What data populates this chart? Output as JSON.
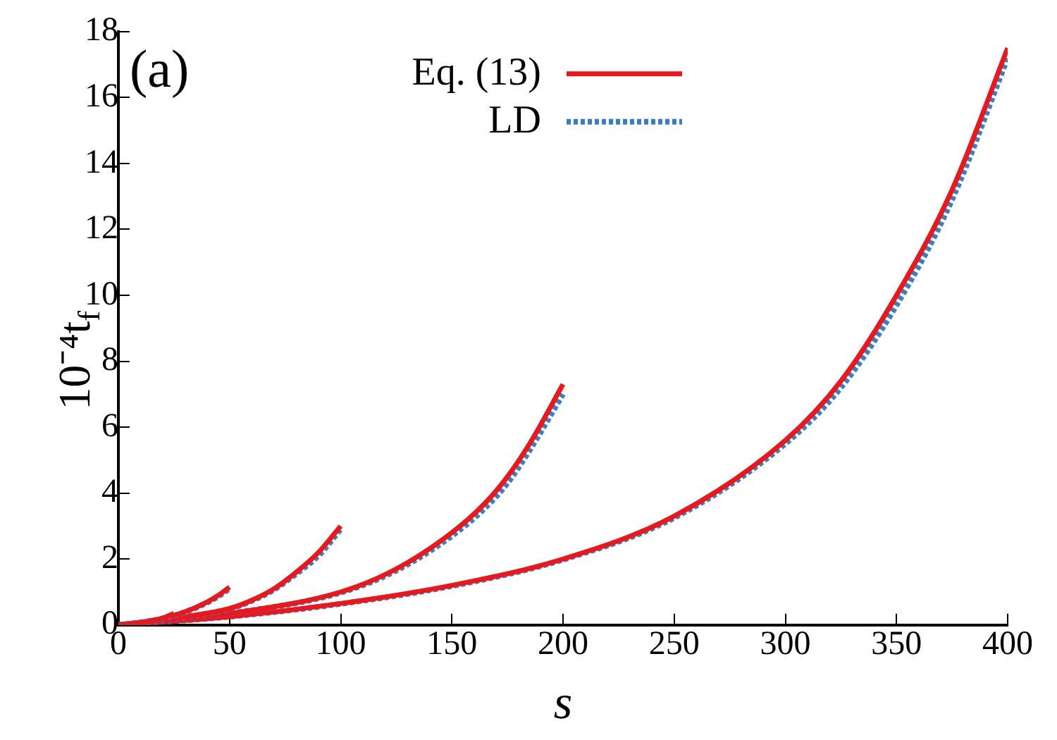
{
  "chart_data": {
    "type": "line",
    "xlabel": "s",
    "ylabel": "10⁻⁴t$_{f}$",
    "annotations": [
      "(a)"
    ],
    "legend": "top left",
    "grid": false,
    "marker": "none",
    "xlim": [
      0,
      400
    ],
    "ylim": [
      0,
      18
    ],
    "xticks": [
      0,
      50,
      100,
      150,
      200,
      250,
      300,
      350,
      400
    ],
    "yticks": [
      0,
      2,
      4,
      6,
      8,
      10,
      12,
      14,
      16,
      18
    ],
    "series": [
      {
        "name": "Eq. (13)",
        "color": "#e8191e",
        "line_style": "solid",
        "x": [
          0,
          5,
          10,
          15,
          20,
          25
        ],
        "values": [
          0,
          0.02,
          0.06,
          0.12,
          0.21,
          0.35
        ]
      },
      {
        "name": "LD",
        "color": "#3a7dc0",
        "line_style": "dotted",
        "x": [
          0,
          5,
          10,
          15,
          20,
          25
        ],
        "values": [
          0,
          0.02,
          0.06,
          0.12,
          0.2,
          0.33
        ]
      },
      {
        "color": "#e8191e",
        "line_style": "solid",
        "x": [
          0,
          10,
          20,
          30,
          40,
          45,
          50
        ],
        "values": [
          0,
          0.08,
          0.2,
          0.4,
          0.7,
          0.9,
          1.15
        ]
      },
      {
        "color": "#3a7dc0",
        "line_style": "dotted",
        "x": [
          0,
          10,
          20,
          30,
          40,
          45,
          50
        ],
        "values": [
          0,
          0.08,
          0.2,
          0.39,
          0.68,
          0.87,
          1.1
        ]
      },
      {
        "color": "#e8191e",
        "line_style": "solid",
        "x": [
          0,
          25,
          50,
          60,
          70,
          80,
          90,
          100
        ],
        "values": [
          0,
          0.2,
          0.5,
          0.75,
          1.1,
          1.6,
          2.2,
          3.0
        ]
      },
      {
        "color": "#3a7dc0",
        "line_style": "dotted",
        "x": [
          0,
          25,
          50,
          60,
          70,
          80,
          90,
          100
        ],
        "values": [
          0,
          0.2,
          0.49,
          0.73,
          1.07,
          1.55,
          2.1,
          2.9
        ]
      },
      {
        "color": "#e8191e",
        "line_style": "solid",
        "x": [
          0,
          50,
          100,
          125,
          150,
          165,
          175,
          185,
          200
        ],
        "values": [
          0,
          0.35,
          1.0,
          1.7,
          2.8,
          3.7,
          4.5,
          5.5,
          7.3
        ]
      },
      {
        "color": "#3a7dc0",
        "line_style": "dotted",
        "x": [
          0,
          50,
          100,
          125,
          150,
          165,
          175,
          185,
          200
        ],
        "values": [
          0,
          0.35,
          0.98,
          1.65,
          2.7,
          3.55,
          4.3,
          5.3,
          7.0
        ]
      },
      {
        "color": "#e8191e",
        "line_style": "solid",
        "x": [
          0,
          50,
          100,
          150,
          200,
          250,
          300,
          325,
          350,
          375,
          400
        ],
        "values": [
          0,
          0.25,
          0.65,
          1.2,
          2.0,
          3.3,
          5.6,
          7.4,
          10.0,
          13.2,
          17.5
        ]
      },
      {
        "color": "#3a7dc0",
        "line_style": "dotted",
        "x": [
          0,
          50,
          100,
          150,
          200,
          250,
          300,
          325,
          350,
          375,
          400
        ],
        "values": [
          0,
          0.25,
          0.64,
          1.18,
          1.98,
          3.25,
          5.5,
          7.2,
          9.7,
          12.9,
          17.2
        ]
      }
    ]
  }
}
